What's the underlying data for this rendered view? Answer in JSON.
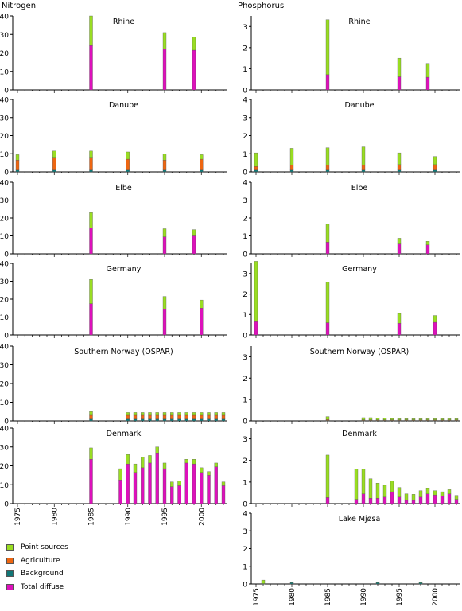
{
  "headers": {
    "left": "Nitrogen",
    "right": "Phosphorus"
  },
  "colors": {
    "point": "#99dd22",
    "agriculture": "#ee6611",
    "background": "#117777",
    "diffuse": "#dd11bb",
    "axis": "#000000"
  },
  "legend": [
    {
      "label": "Point sources",
      "key": "point"
    },
    {
      "label": "Agriculture",
      "key": "agriculture"
    },
    {
      "label": "Background",
      "key": "background"
    },
    {
      "label": "Total diffuse",
      "key": "diffuse"
    }
  ],
  "chart_data": [
    {
      "type": "bar",
      "stacked": true,
      "title": "Rhine",
      "ylim": [
        0,
        40
      ],
      "yticks": [
        0,
        10,
        20,
        30,
        40
      ],
      "xlim": [
        1975,
        2003
      ],
      "x": [
        1985,
        1995,
        1999
      ],
      "series": [
        {
          "name": "Total diffuse",
          "key": "diffuse",
          "values": [
            24,
            22,
            21.5
          ]
        },
        {
          "name": "Point sources",
          "key": "point",
          "values": [
            16,
            9,
            7
          ]
        }
      ]
    },
    {
      "type": "bar",
      "stacked": true,
      "title": "Rhine",
      "ylim": [
        0,
        3.5
      ],
      "yticks": [
        0,
        1,
        2,
        3
      ],
      "xlim": [
        1975,
        2003
      ],
      "x": [
        1985,
        1995,
        1999
      ],
      "series": [
        {
          "name": "Total diffuse",
          "key": "diffuse",
          "values": [
            0.72,
            0.62,
            0.6
          ]
        },
        {
          "name": "Point sources",
          "key": "point",
          "values": [
            2.6,
            0.88,
            0.65
          ]
        }
      ]
    },
    {
      "type": "bar",
      "stacked": true,
      "title": "Danube",
      "ylim": [
        0,
        40
      ],
      "yticks": [
        0,
        10,
        20,
        30,
        40
      ],
      "xlim": [
        1975,
        2003
      ],
      "x": [
        1975,
        1980,
        1985,
        1990,
        1995,
        2000
      ],
      "series": [
        {
          "name": "Background",
          "key": "background",
          "values": [
            1,
            1,
            1,
            1,
            1,
            1
          ]
        },
        {
          "name": "Agriculture",
          "key": "agriculture",
          "values": [
            5.5,
            7,
            7,
            6,
            5.5,
            6
          ]
        },
        {
          "name": "Point sources",
          "key": "point",
          "values": [
            3,
            3.5,
            3.5,
            4,
            3.5,
            2.5
          ]
        }
      ]
    },
    {
      "type": "bar",
      "stacked": true,
      "title": "Danube",
      "ylim": [
        0,
        4
      ],
      "yticks": [
        0,
        1,
        2,
        3,
        4
      ],
      "xlim": [
        1975,
        2003
      ],
      "x": [
        1975,
        1980,
        1985,
        1990,
        1995,
        2000
      ],
      "series": [
        {
          "name": "Background",
          "key": "background",
          "values": [
            0.1,
            0.1,
            0.1,
            0.1,
            0.1,
            0.1
          ]
        },
        {
          "name": "Agriculture",
          "key": "agriculture",
          "values": [
            0.2,
            0.28,
            0.28,
            0.28,
            0.3,
            0.3
          ]
        },
        {
          "name": "Point sources",
          "key": "point",
          "values": [
            0.75,
            0.92,
            0.95,
            1.0,
            0.65,
            0.45
          ]
        }
      ]
    },
    {
      "type": "bar",
      "stacked": true,
      "title": "Elbe",
      "ylim": [
        0,
        40
      ],
      "yticks": [
        0,
        10,
        20,
        30,
        40
      ],
      "xlim": [
        1975,
        2003
      ],
      "x": [
        1985,
        1995,
        1999
      ],
      "series": [
        {
          "name": "Total diffuse",
          "key": "diffuse",
          "values": [
            14.5,
            9.5,
            10
          ]
        },
        {
          "name": "Point sources",
          "key": "point",
          "values": [
            8.5,
            4.5,
            3.5
          ]
        }
      ]
    },
    {
      "type": "bar",
      "stacked": true,
      "title": "Elbe",
      "ylim": [
        0,
        4
      ],
      "yticks": [
        0,
        1,
        2,
        3,
        4
      ],
      "xlim": [
        1975,
        2003
      ],
      "x": [
        1985,
        1995,
        1999
      ],
      "series": [
        {
          "name": "Total diffuse",
          "key": "diffuse",
          "values": [
            0.65,
            0.55,
            0.5
          ]
        },
        {
          "name": "Point sources",
          "key": "point",
          "values": [
            1.0,
            0.32,
            0.2
          ]
        }
      ]
    },
    {
      "type": "bar",
      "stacked": true,
      "title": "Germany",
      "ylim": [
        0,
        40
      ],
      "yticks": [
        0,
        10,
        20,
        30,
        40
      ],
      "xlim": [
        1975,
        2003
      ],
      "x": [
        1985,
        1995,
        2000
      ],
      "series": [
        {
          "name": "Total diffuse",
          "key": "diffuse",
          "values": [
            17.5,
            14.5,
            15
          ]
        },
        {
          "name": "Point sources",
          "key": "point",
          "values": [
            13.5,
            7,
            4.5
          ]
        }
      ]
    },
    {
      "type": "bar",
      "stacked": true,
      "title": "Germany",
      "ylim": [
        0,
        3.5
      ],
      "yticks": [
        0,
        1,
        2,
        3
      ],
      "xlim": [
        1975,
        2003
      ],
      "x": [
        1975,
        1985,
        1995,
        2000
      ],
      "series": [
        {
          "name": "Total diffuse",
          "key": "diffuse",
          "values": [
            0.65,
            0.6,
            0.57,
            0.62
          ]
        },
        {
          "name": "Point sources",
          "key": "point",
          "values": [
            2.95,
            1.98,
            0.48,
            0.33
          ]
        }
      ]
    },
    {
      "type": "bar",
      "stacked": true,
      "title": "Southern Norway (OSPAR)",
      "ylim": [
        0,
        40
      ],
      "yticks": [
        0,
        10,
        20,
        30,
        40
      ],
      "xlim": [
        1975,
        2003
      ],
      "x": [
        1985,
        1990,
        1991,
        1992,
        1993,
        1994,
        1995,
        1996,
        1997,
        1998,
        1999,
        2000,
        2001,
        2002,
        2003
      ],
      "series": [
        {
          "name": "Background",
          "key": "background",
          "values": [
            1,
            1,
            1,
            1,
            1,
            1,
            1,
            1,
            1,
            1,
            1,
            1,
            1,
            1,
            1
          ]
        },
        {
          "name": "Agriculture",
          "key": "agriculture",
          "values": [
            2,
            2,
            2,
            2,
            2,
            2,
            2,
            2,
            2,
            2,
            2,
            2,
            2,
            2,
            2
          ]
        },
        {
          "name": "Point sources",
          "key": "point",
          "values": [
            2,
            1.5,
            1.5,
            1.5,
            1.5,
            1.5,
            1.5,
            1.5,
            1.5,
            1.5,
            1.5,
            1.5,
            1.5,
            1.5,
            1.5
          ]
        }
      ]
    },
    {
      "type": "bar",
      "stacked": true,
      "title": "Southern Norway (OSPAR)",
      "ylim": [
        0,
        3.5
      ],
      "yticks": [
        0,
        1,
        2,
        3
      ],
      "xlim": [
        1975,
        2003
      ],
      "x": [
        1985,
        1990,
        1991,
        1992,
        1993,
        1994,
        1995,
        1996,
        1997,
        1998,
        1999,
        2000,
        2001,
        2002,
        2003
      ],
      "series": [
        {
          "name": "Background",
          "key": "background",
          "values": [
            0.02,
            0.02,
            0.02,
            0.02,
            0.02,
            0.02,
            0.02,
            0.02,
            0.02,
            0.02,
            0.02,
            0.02,
            0.02,
            0.02,
            0.02
          ]
        },
        {
          "name": "Agriculture",
          "key": "agriculture",
          "values": [
            0.04,
            0.03,
            0.03,
            0.03,
            0.03,
            0.03,
            0.03,
            0.03,
            0.03,
            0.03,
            0.03,
            0.03,
            0.03,
            0.03,
            0.03
          ]
        },
        {
          "name": "Point sources",
          "key": "point",
          "values": [
            0.14,
            0.1,
            0.1,
            0.08,
            0.08,
            0.06,
            0.05,
            0.05,
            0.05,
            0.05,
            0.05,
            0.05,
            0.05,
            0.05,
            0.05
          ]
        }
      ]
    },
    {
      "type": "bar",
      "stacked": true,
      "title": "Denmark",
      "ylim": [
        0,
        40
      ],
      "yticks": [
        0,
        10,
        20,
        30,
        40
      ],
      "xlim": [
        1975,
        2003
      ],
      "xticks": [
        1975,
        1980,
        1985,
        1990,
        1995,
        2000
      ],
      "x": [
        1985,
        1989,
        1990,
        1991,
        1992,
        1993,
        1994,
        1995,
        1996,
        1997,
        1998,
        1999,
        2000,
        2001,
        2002,
        2003
      ],
      "series": [
        {
          "name": "Total diffuse",
          "key": "diffuse",
          "values": [
            23.5,
            12.5,
            21,
            16.5,
            19,
            21.5,
            26.5,
            18.5,
            9,
            9.5,
            21.5,
            21,
            16.5,
            15,
            19.5,
            9.5
          ]
        },
        {
          "name": "Point sources",
          "key": "point",
          "values": [
            6,
            6,
            5,
            4.5,
            5.5,
            4,
            3.5,
            3,
            2.5,
            2.5,
            2,
            2.5,
            2.5,
            2,
            2,
            2
          ]
        }
      ]
    },
    {
      "type": "bar",
      "stacked": true,
      "title": "Denmark",
      "ylim": [
        0,
        3.5
      ],
      "yticks": [
        0,
        1,
        2,
        3
      ],
      "xlim": [
        1975,
        2003
      ],
      "x": [
        1985,
        1989,
        1990,
        1991,
        1992,
        1993,
        1994,
        1995,
        1996,
        1997,
        1998,
        1999,
        2000,
        2001,
        2002,
        2003
      ],
      "series": [
        {
          "name": "Total diffuse",
          "key": "diffuse",
          "values": [
            0.28,
            0.2,
            0.45,
            0.25,
            0.25,
            0.3,
            0.55,
            0.3,
            0.15,
            0.15,
            0.3,
            0.45,
            0.4,
            0.35,
            0.45,
            0.2
          ]
        },
        {
          "name": "Point sources",
          "key": "point",
          "values": [
            1.97,
            1.4,
            1.15,
            0.9,
            0.7,
            0.55,
            0.5,
            0.45,
            0.3,
            0.28,
            0.3,
            0.25,
            0.2,
            0.2,
            0.2,
            0.18
          ]
        }
      ]
    },
    {
      "type": "bar",
      "stacked": true,
      "title": "Lake Mjøsa",
      "ylim": [
        0,
        4
      ],
      "yticks": [
        0,
        1,
        2,
        3,
        4
      ],
      "xlim": [
        1975,
        2003
      ],
      "xticks": [
        1975,
        1980,
        1985,
        1990,
        1995,
        2000
      ],
      "x": [
        1976,
        1980,
        1992,
        1998
      ],
      "series": [
        {
          "name": "Background",
          "key": "background",
          "values": [
            0.02,
            0.08,
            0.08,
            0.08
          ]
        },
        {
          "name": "Point sources",
          "key": "point",
          "values": [
            0.2,
            0.04,
            0.04,
            0.02
          ]
        }
      ]
    }
  ]
}
